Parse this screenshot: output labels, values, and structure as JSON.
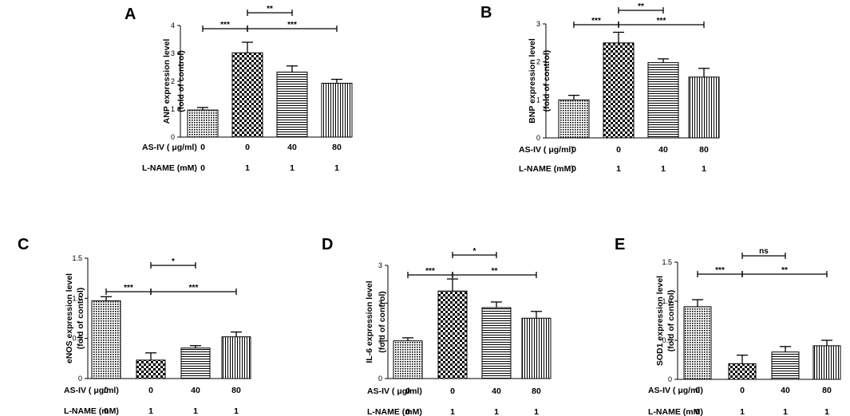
{
  "row_labels": {
    "asiv": "AS-IV ( μg/ml)",
    "lname": "L-NAME (mM)"
  },
  "asiv_values": [
    "0",
    "0",
    "40",
    "80"
  ],
  "lname_values": [
    "0",
    "1",
    "1",
    "1"
  ],
  "colors": {
    "ink": "#000000",
    "background": "#ffffff"
  },
  "chart_data": [
    {
      "id": "A",
      "panel_label": "A",
      "type": "bar",
      "ylabel_line1": "ANP expression level",
      "ylabel_line2": "(fold of control)",
      "ylim": [
        0,
        4
      ],
      "yticks": [
        "0",
        "1",
        "2",
        "3",
        "4"
      ],
      "categories": [
        "0/0",
        "0/1",
        "40/1",
        "80/1"
      ],
      "values": [
        0.97,
        3.02,
        2.33,
        1.93
      ],
      "errors": [
        0.09,
        0.38,
        0.22,
        0.14
      ],
      "significance": [
        {
          "from": 0,
          "to": 1,
          "label": "***"
        },
        {
          "from": 1,
          "to": 2,
          "label": "**"
        },
        {
          "from": 1,
          "to": 3,
          "label": "***"
        }
      ]
    },
    {
      "id": "B",
      "panel_label": "B",
      "type": "bar",
      "ylabel_line1": "BNP expression level",
      "ylabel_line2": "(fold of control)",
      "ylim": [
        0,
        3
      ],
      "yticks": [
        "0",
        "1",
        "2",
        "3"
      ],
      "categories": [
        "0/0",
        "0/1",
        "40/1",
        "80/1"
      ],
      "values": [
        1.0,
        2.5,
        1.98,
        1.6
      ],
      "errors": [
        0.12,
        0.28,
        0.1,
        0.23
      ],
      "significance": [
        {
          "from": 0,
          "to": 1,
          "label": "***"
        },
        {
          "from": 1,
          "to": 2,
          "label": "**"
        },
        {
          "from": 1,
          "to": 3,
          "label": "***"
        }
      ]
    },
    {
      "id": "C",
      "panel_label": "C",
      "type": "bar",
      "ylabel_line1": "eNOS expression level",
      "ylabel_line2": "(fold of control)",
      "ylim": [
        0,
        1.5
      ],
      "yticks": [
        "0",
        "0.5",
        "1.0",
        "1.5"
      ],
      "categories": [
        "0/0",
        "0/1",
        "40/1",
        "80/1"
      ],
      "values": [
        0.97,
        0.23,
        0.38,
        0.52
      ],
      "errors": [
        0.05,
        0.09,
        0.03,
        0.06
      ],
      "significance": [
        {
          "from": 0,
          "to": 1,
          "label": "***"
        },
        {
          "from": 1,
          "to": 2,
          "label": "*"
        },
        {
          "from": 1,
          "to": 3,
          "label": "***"
        }
      ]
    },
    {
      "id": "D",
      "panel_label": "D",
      "type": "bar",
      "ylabel_line1": "IL-6 expression level",
      "ylabel_line2": "(fold of control)",
      "ylim": [
        0,
        3
      ],
      "yticks": [
        "0",
        "1",
        "2",
        "3"
      ],
      "categories": [
        "0/0",
        "0/1",
        "40/1",
        "80/1"
      ],
      "values": [
        1.0,
        2.32,
        1.88,
        1.6
      ],
      "errors": [
        0.08,
        0.32,
        0.15,
        0.18
      ],
      "significance": [
        {
          "from": 0,
          "to": 1,
          "label": "***"
        },
        {
          "from": 1,
          "to": 2,
          "label": "*"
        },
        {
          "from": 1,
          "to": 3,
          "label": "**"
        }
      ]
    },
    {
      "id": "E",
      "panel_label": "E",
      "type": "bar",
      "ylabel_line1": "SOD1 expression level",
      "ylabel_line2": "(fold of control)",
      "ylim": [
        0,
        1.5
      ],
      "yticks": [
        "0",
        "0.5",
        "1.0",
        "1.5"
      ],
      "categories": [
        "0/0",
        "0/1",
        "40/1",
        "80/1"
      ],
      "values": [
        0.93,
        0.2,
        0.35,
        0.43
      ],
      "errors": [
        0.09,
        0.11,
        0.07,
        0.07
      ],
      "significance": [
        {
          "from": 0,
          "to": 1,
          "label": "***"
        },
        {
          "from": 1,
          "to": 2,
          "label": "ns"
        },
        {
          "from": 1,
          "to": 3,
          "label": "**"
        }
      ]
    }
  ]
}
